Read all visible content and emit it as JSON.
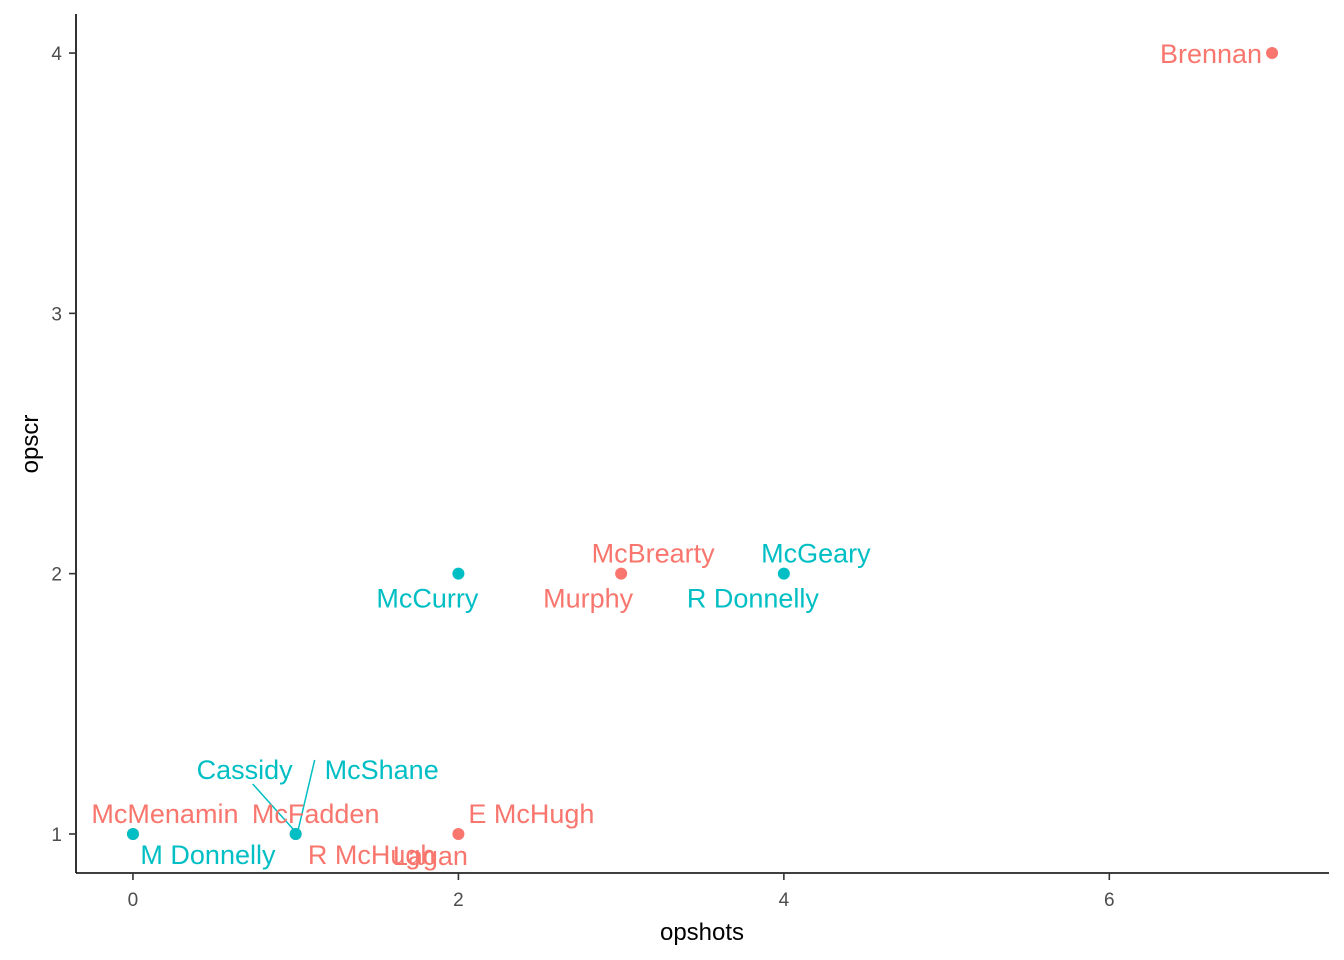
{
  "colors": {
    "groupA": "#F8766D",
    "groupB": "#00BFC4"
  },
  "chart_data": {
    "type": "scatter",
    "title": "",
    "xlabel": "opshots",
    "ylabel": "opscr",
    "xlim": [
      -0.35,
      7.35
    ],
    "ylim": [
      0.85,
      4.15
    ],
    "xticks": [
      0,
      2,
      4,
      6
    ],
    "yticks": [
      1,
      2,
      3,
      4
    ],
    "grid": false,
    "legend": "none",
    "points": [
      {
        "label": "Brennan",
        "x": 7,
        "y": 4,
        "group": "groupA"
      },
      {
        "label": "McBrearty",
        "x": 3,
        "y": 2,
        "group": "groupA"
      },
      {
        "label": "Murphy",
        "x": 3,
        "y": 2,
        "group": "groupA"
      },
      {
        "label": "McGeary",
        "x": 4,
        "y": 2,
        "group": "groupB"
      },
      {
        "label": "R Donnelly",
        "x": 4,
        "y": 2,
        "group": "groupB"
      },
      {
        "label": "McCurry",
        "x": 2,
        "y": 2,
        "group": "groupB"
      },
      {
        "label": "McMenamin",
        "x": 0,
        "y": 1,
        "group": "groupA"
      },
      {
        "label": "M Donnelly",
        "x": 0,
        "y": 1,
        "group": "groupB"
      },
      {
        "label": "McFadden",
        "x": 1,
        "y": 1,
        "group": "groupA"
      },
      {
        "label": "Cassidy",
        "x": 1,
        "y": 1,
        "group": "groupB"
      },
      {
        "label": "McShane",
        "x": 1,
        "y": 1,
        "group": "groupB"
      },
      {
        "label": "R McHugh",
        "x": 1,
        "y": 1,
        "group": "groupA"
      },
      {
        "label": "E McHugh",
        "x": 2,
        "y": 1,
        "group": "groupA"
      },
      {
        "label": "Lagan",
        "x": 2,
        "y": 1,
        "group": "groupA"
      }
    ]
  }
}
